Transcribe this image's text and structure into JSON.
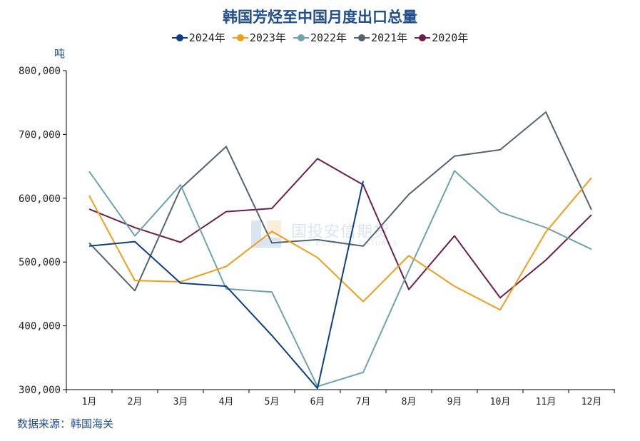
{
  "title": "韩国芳烃至中国月度出口总量",
  "unit": "吨",
  "source": "数据来源：韩国海关",
  "watermark": {
    "cn": "国投安信期货",
    "en": "SDIC ESSENCE FUTURES"
  },
  "chart_data": {
    "type": "line",
    "title": "韩国芳烃至中国月度出口总量",
    "ylabel": "吨",
    "xlabel": "",
    "ylim": [
      300000,
      800000
    ],
    "yticks": [
      300000,
      400000,
      500000,
      600000,
      700000,
      800000
    ],
    "ytick_labels": [
      "300,000",
      "400,000",
      "500,000",
      "600,000",
      "700,000",
      "800,000"
    ],
    "categories": [
      "1月",
      "2月",
      "3月",
      "4月",
      "5月",
      "6月",
      "7月",
      "8月",
      "9月",
      "10月",
      "11月",
      "12月"
    ],
    "legend_position": "top",
    "grid": false,
    "series": [
      {
        "name": "2024年",
        "color": "#0d3f87",
        "values": [
          525000,
          532000,
          467000,
          462000,
          385000,
          302000,
          627000,
          null,
          null,
          null,
          null,
          null
        ]
      },
      {
        "name": "2023年",
        "color": "#f09e1a",
        "values": [
          604000,
          471000,
          469000,
          493000,
          548000,
          507000,
          438000,
          510000,
          462000,
          425000,
          547000,
          632000
        ]
      },
      {
        "name": "2022年",
        "color": "#6ea3aa",
        "values": [
          642000,
          541000,
          621000,
          458000,
          453000,
          305000,
          327000,
          487000,
          643000,
          578000,
          554000,
          520000
        ]
      },
      {
        "name": "2021年",
        "color": "#56636f",
        "values": [
          530000,
          455000,
          615000,
          681000,
          530000,
          535000,
          525000,
          606000,
          666000,
          676000,
          735000,
          582000
        ]
      },
      {
        "name": "2020年",
        "color": "#6b1f4b",
        "values": [
          583000,
          554000,
          531000,
          579000,
          584000,
          662000,
          621000,
          457000,
          541000,
          444000,
          503000,
          574000
        ]
      }
    ]
  }
}
